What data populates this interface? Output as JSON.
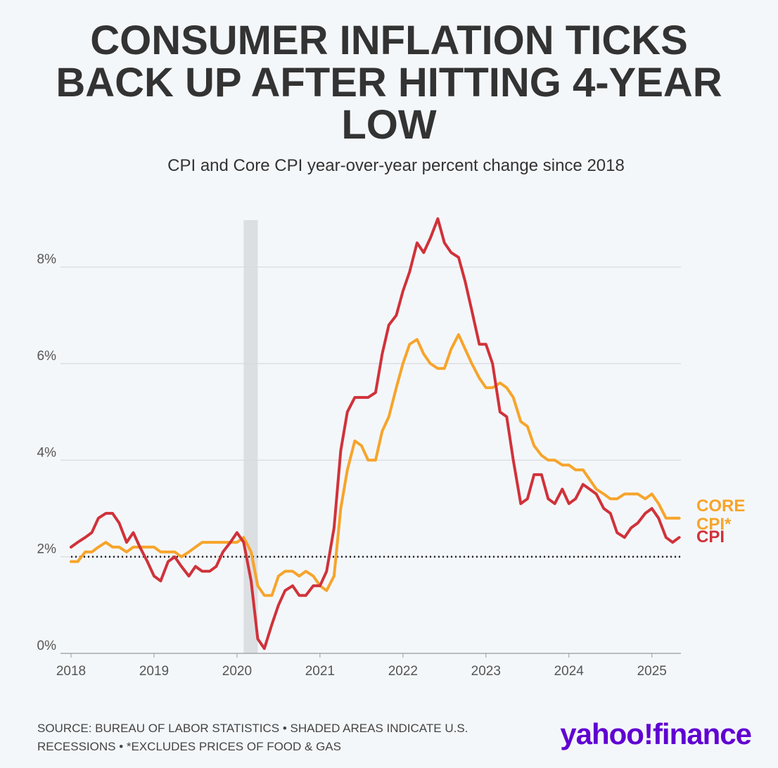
{
  "chart_data": {
    "type": "line",
    "title": "CONSUMER INFLATION TICKS BACK UP AFTER HITTING 4-YEAR LOW",
    "subtitle": "CPI and Core CPI year-over-year percent change since 2018",
    "source": "SOURCE: BUREAU OF LABOR STATISTICS • SHADED AREAS INDICATE U.S. RECESSIONS • *EXCLUDES PRICES OF FOOD & GAS",
    "logo": "yahoo!finance",
    "x": [
      2018.0,
      2018.08,
      2018.17,
      2018.25,
      2018.33,
      2018.42,
      2018.5,
      2018.58,
      2018.67,
      2018.75,
      2018.83,
      2018.92,
      2019.0,
      2019.08,
      2019.17,
      2019.25,
      2019.33,
      2019.42,
      2019.5,
      2019.58,
      2019.67,
      2019.75,
      2019.83,
      2019.92,
      2020.0,
      2020.08,
      2020.17,
      2020.25,
      2020.33,
      2020.42,
      2020.5,
      2020.58,
      2020.67,
      2020.75,
      2020.83,
      2020.92,
      2021.0,
      2021.08,
      2021.17,
      2021.25,
      2021.33,
      2021.42,
      2021.5,
      2021.58,
      2021.67,
      2021.75,
      2021.83,
      2021.92,
      2022.0,
      2022.08,
      2022.17,
      2022.25,
      2022.33,
      2022.42,
      2022.5,
      2022.58,
      2022.67,
      2022.75,
      2022.83,
      2022.92,
      2023.0,
      2023.08,
      2023.17,
      2023.25,
      2023.33,
      2023.42,
      2023.5,
      2023.58,
      2023.67,
      2023.75,
      2023.83,
      2023.92,
      2024.0,
      2024.08,
      2024.17,
      2024.25,
      2024.33,
      2024.42,
      2024.5,
      2024.58,
      2024.67,
      2024.75,
      2024.83,
      2024.92,
      2025.0,
      2025.08,
      2025.17,
      2025.25,
      2025.33
    ],
    "series": [
      {
        "name": "CPI",
        "color": "#d0323a",
        "values": [
          2.2,
          2.3,
          2.4,
          2.5,
          2.8,
          2.9,
          2.9,
          2.7,
          2.3,
          2.5,
          2.2,
          1.9,
          1.6,
          1.5,
          1.9,
          2.0,
          1.8,
          1.6,
          1.8,
          1.7,
          1.7,
          1.8,
          2.1,
          2.3,
          2.5,
          2.3,
          1.5,
          0.3,
          0.1,
          0.6,
          1.0,
          1.3,
          1.4,
          1.2,
          1.2,
          1.4,
          1.4,
          1.7,
          2.6,
          4.2,
          5.0,
          5.3,
          5.3,
          5.3,
          5.4,
          6.2,
          6.8,
          7.0,
          7.5,
          7.9,
          8.5,
          8.3,
          8.6,
          9.0,
          8.5,
          8.3,
          8.2,
          7.7,
          7.1,
          6.4,
          6.4,
          6.0,
          5.0,
          4.9,
          4.0,
          3.1,
          3.2,
          3.7,
          3.7,
          3.2,
          3.1,
          3.4,
          3.1,
          3.2,
          3.5,
          3.4,
          3.3,
          3.0,
          2.9,
          2.5,
          2.4,
          2.6,
          2.7,
          2.9,
          3.0,
          2.8,
          2.4,
          2.3,
          2.4
        ]
      },
      {
        "name": "CORE CPI*",
        "color": "#f7a42b",
        "values": [
          1.9,
          1.9,
          2.1,
          2.1,
          2.2,
          2.3,
          2.2,
          2.2,
          2.1,
          2.2,
          2.2,
          2.2,
          2.2,
          2.1,
          2.1,
          2.1,
          2.0,
          2.1,
          2.2,
          2.3,
          2.3,
          2.3,
          2.3,
          2.3,
          2.3,
          2.4,
          2.1,
          1.4,
          1.2,
          1.2,
          1.6,
          1.7,
          1.7,
          1.6,
          1.7,
          1.6,
          1.4,
          1.3,
          1.6,
          3.0,
          3.8,
          4.4,
          4.3,
          4.0,
          4.0,
          4.6,
          4.9,
          5.5,
          6.0,
          6.4,
          6.5,
          6.2,
          6.0,
          5.9,
          5.9,
          6.3,
          6.6,
          6.3,
          6.0,
          5.7,
          5.5,
          5.5,
          5.6,
          5.5,
          5.3,
          4.8,
          4.7,
          4.3,
          4.1,
          4.0,
          4.0,
          3.9,
          3.9,
          3.8,
          3.8,
          3.6,
          3.4,
          3.3,
          3.2,
          3.2,
          3.3,
          3.3,
          3.3,
          3.2,
          3.3,
          3.1,
          2.8,
          2.8,
          2.8
        ]
      }
    ],
    "xlim": [
      2018,
      2025.35
    ],
    "xticks": [
      2018,
      2019,
      2020,
      2021,
      2022,
      2023,
      2024,
      2025
    ],
    "ylim": [
      0,
      9
    ],
    "yticks": [
      {
        "value": 0,
        "label": "0%"
      },
      {
        "value": 2,
        "label": "2%"
      },
      {
        "value": 4,
        "label": "4%"
      },
      {
        "value": 6,
        "label": "6%"
      },
      {
        "value": 8,
        "label": "8%"
      }
    ],
    "grid": true,
    "reference_line": 2,
    "recession": [
      2020.08,
      2020.25
    ]
  }
}
